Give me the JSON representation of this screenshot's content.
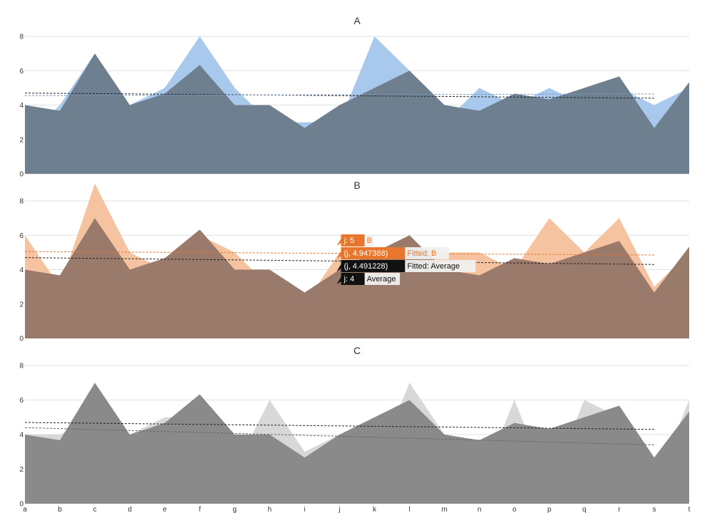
{
  "chart_data": [
    {
      "type": "area",
      "title": "A",
      "categories": [
        "a",
        "b",
        "c",
        "d",
        "e",
        "f",
        "g",
        "h",
        "i",
        "j",
        "k",
        "l",
        "m",
        "n",
        "o",
        "p",
        "q",
        "r",
        "s",
        "t"
      ],
      "ylim": [
        0,
        8
      ],
      "yticks": [
        0,
        2,
        4,
        6,
        8
      ],
      "grid": true,
      "series": [
        {
          "values": [
            2,
            4,
            7,
            4,
            5,
            8,
            5,
            3,
            3,
            3,
            8,
            6,
            3,
            5,
            4,
            5,
            4,
            5,
            4,
            5
          ],
          "color": "#a8c8ec"
        },
        {
          "values": [
            4,
            3.67,
            7,
            4,
            4.67,
            6.33,
            4,
            4,
            2.67,
            4,
            5,
            6,
            4,
            3.67,
            4.67,
            4.33,
            5,
            5.67,
            2.67,
            5.33
          ],
          "color": "#6e7f90"
        }
      ],
      "trend_lines": [
        {
          "from": 4.7,
          "to": 4.4,
          "color": "#222222"
        },
        {
          "from": 4.55,
          "to": 4.65,
          "color": "#7a98bb"
        }
      ]
    },
    {
      "type": "area",
      "title": "B",
      "categories": [
        "a",
        "b",
        "c",
        "d",
        "e",
        "f",
        "g",
        "h",
        "i",
        "j",
        "k",
        "l",
        "m",
        "n",
        "o",
        "p",
        "q",
        "r",
        "s",
        "t"
      ],
      "ylim": [
        0,
        8
      ],
      "yticks": [
        0,
        2,
        4,
        6,
        8
      ],
      "grid": true,
      "series": [
        {
          "name": "B",
          "values": [
            6,
            3,
            9,
            5,
            4,
            6,
            5,
            3,
            2,
            5,
            5,
            5,
            5,
            5,
            4,
            7,
            5,
            7,
            3,
            5
          ],
          "color": "#f5c3a0"
        },
        {
          "name": "Average",
          "values": [
            4,
            3.67,
            7,
            4,
            4.67,
            6.33,
            4,
            4,
            2.67,
            4,
            5,
            6,
            4,
            3.67,
            4.67,
            4.33,
            5,
            5.67,
            2.67,
            5.33
          ],
          "color": "#9a7a6a"
        }
      ],
      "trend_lines": [
        {
          "name": "Fitted: B",
          "from": 5.05,
          "to": 4.85,
          "color": "#e8762c"
        },
        {
          "name": "Fitted: Average",
          "from": 4.7,
          "to": 4.3,
          "color": "#222222"
        }
      ],
      "tooltip": {
        "category": "j",
        "rows": [
          {
            "tag": "j: 5",
            "label": "B",
            "value": 5,
            "bg": "#e8762c",
            "fg": "#e8762c"
          },
          {
            "tag": "(j, 4.947368)",
            "label": "Fitted: B",
            "value": 4.947368,
            "bg": "#e8762c",
            "fg": "#e8762c"
          },
          {
            "tag": "(j, 4.491228)",
            "label": "Fitted: Average",
            "value": 4.491228,
            "bg": "#111111",
            "fg": "#111111"
          },
          {
            "tag": "j: 4",
            "label": "Average",
            "value": 4,
            "bg": "#111111",
            "fg": "#111111"
          }
        ]
      }
    },
    {
      "type": "area",
      "title": "C",
      "categories": [
        "a",
        "b",
        "c",
        "d",
        "e",
        "f",
        "g",
        "h",
        "i",
        "j",
        "k",
        "l",
        "m",
        "n",
        "o",
        "p",
        "q",
        "r",
        "s",
        "t"
      ],
      "ylim": [
        0,
        8
      ],
      "yticks": [
        0,
        2,
        4,
        6,
        8
      ],
      "grid": true,
      "series": [
        {
          "values": [
            4,
            4,
            5,
            4,
            5,
            5,
            2,
            6,
            3,
            4,
            2,
            7,
            4,
            1,
            6,
            1,
            6,
            5,
            1,
            6
          ],
          "color": "#d8d8d8"
        },
        {
          "values": [
            4,
            3.67,
            7,
            4,
            4.67,
            6.33,
            4,
            4,
            2.67,
            4,
            5,
            6,
            4,
            3.67,
            4.67,
            4.33,
            5,
            5.67,
            2.67,
            5.33
          ],
          "color": "#8a8a8a"
        }
      ],
      "trend_lines": [
        {
          "from": 4.7,
          "to": 4.3,
          "color": "#222222"
        },
        {
          "from": 4.4,
          "to": 3.4,
          "color": "#666666"
        }
      ]
    }
  ]
}
